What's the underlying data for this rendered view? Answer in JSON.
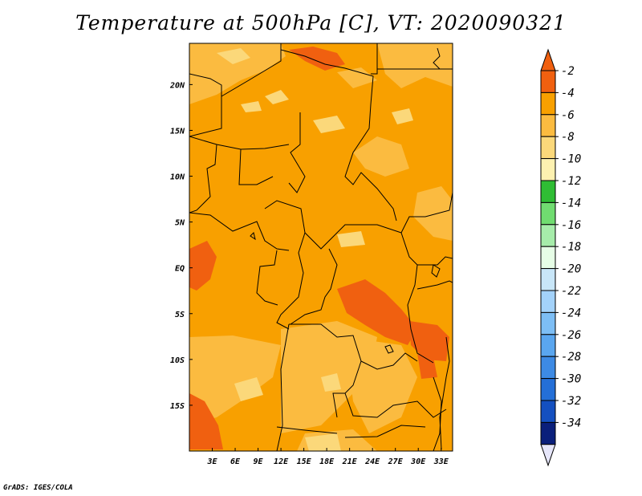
{
  "title": "Temperature at 500hPa [C], VT: 2020090321",
  "credit": "GrADS: IGES/COLA",
  "map": {
    "region": "Central Africa",
    "lon_range": [
      0,
      34.5
    ],
    "lat_range": [
      -20,
      24.5
    ],
    "lon_ticks": [
      "3E",
      "6E",
      "9E",
      "12E",
      "15E",
      "18E",
      "21E",
      "24E",
      "27E",
      "30E",
      "33E"
    ],
    "lat_ticks": [
      "20N",
      "15N",
      "10N",
      "5N",
      "EQ",
      "5S",
      "10S",
      "15S"
    ],
    "base_color": "#f8a000"
  },
  "colorbar": {
    "labels": [
      "-2",
      "-4",
      "-6",
      "-8",
      "-10",
      "-12",
      "-14",
      "-16",
      "-18",
      "-20",
      "-22",
      "-24",
      "-26",
      "-28",
      "-30",
      "-32",
      "-34"
    ],
    "colors": [
      "#f06010",
      "#f8a000",
      "#fbbb40",
      "#fbd87a",
      "#fdf1b0",
      "#2fbd34",
      "#70dc70",
      "#a6ecaa",
      "#e6fde6",
      "#c8e6f8",
      "#a3d2fa",
      "#7dbef5",
      "#5aa6ef",
      "#3d8ae4",
      "#246fd7",
      "#1450c0",
      "#0a1f7b"
    ],
    "top_arrow_color": "#f06010",
    "bottom_arrow_color": "#e6e6fa"
  }
}
